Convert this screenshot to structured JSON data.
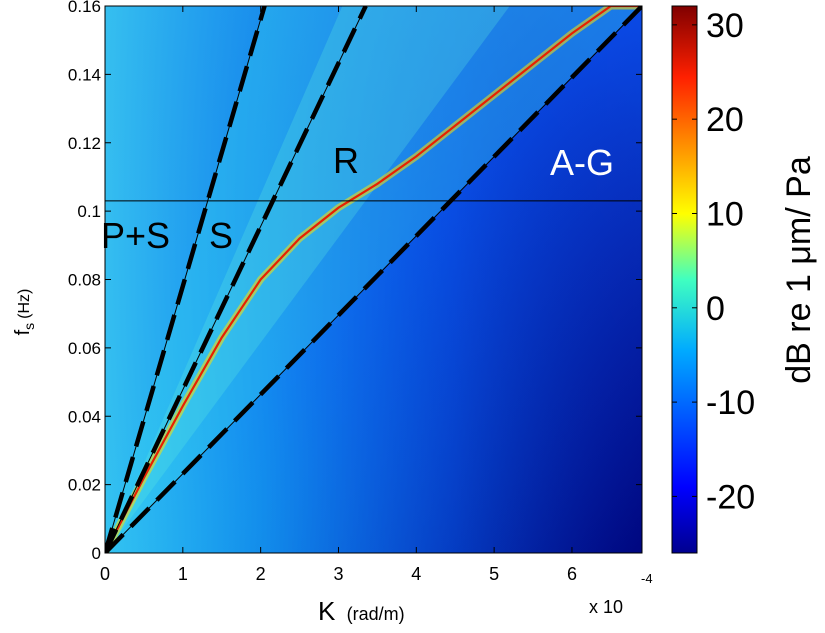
{
  "chart_data": {
    "type": "heatmap",
    "xlabel_main": "K",
    "xlabel_unit": "(rad/m)",
    "x_multiplier": "x 10",
    "x_multiplier_exp": "-4",
    "ylabel_main": "f",
    "ylabel_sub": "s",
    "ylabel_unit": "(Hz)",
    "xlim": [
      0,
      6.9
    ],
    "ylim": [
      0,
      0.16
    ],
    "x_ticks": [
      "0",
      "1",
      "2",
      "3",
      "4",
      "5",
      "6"
    ],
    "y_ticks": [
      "0",
      "0.02",
      "0.04",
      "0.06",
      "0.08",
      "0.1",
      "0.12",
      "0.14",
      "0.16"
    ],
    "colorbar": {
      "label": "dB re  1 μm/ Pa",
      "range": [
        -26,
        32
      ],
      "ticks": [
        "-20",
        "-10",
        "0",
        "10",
        "20",
        "30"
      ]
    },
    "horizontal_line_y": 0.103,
    "annotations": [
      {
        "text": "P+S",
        "color": "#000000"
      },
      {
        "text": "S",
        "color": "#000000"
      },
      {
        "text": "R",
        "color": "#000000"
      },
      {
        "text": "A-G",
        "color": "#ffffff"
      }
    ],
    "dashed_lines": [
      {
        "name": "P+S",
        "points": [
          [
            0,
            0
          ],
          [
            2.05,
            0.16
          ]
        ]
      },
      {
        "name": "S",
        "points": [
          [
            0,
            0
          ],
          [
            3.35,
            0.16
          ]
        ]
      },
      {
        "name": "A-G",
        "points": [
          [
            0,
            0
          ],
          [
            6.9,
            0.16
          ]
        ]
      }
    ],
    "ridge_curve": {
      "name": "R",
      "x": [
        0,
        0.5,
        1.0,
        1.5,
        2.0,
        2.5,
        3.0,
        3.5,
        4.0,
        4.5,
        5.0,
        5.5,
        6.0,
        6.5,
        6.9
      ],
      "y": [
        0,
        0.022,
        0.043,
        0.063,
        0.08,
        0.092,
        0.101,
        0.108,
        0.116,
        0.125,
        0.134,
        0.143,
        0.152,
        0.16,
        0.16
      ]
    }
  }
}
